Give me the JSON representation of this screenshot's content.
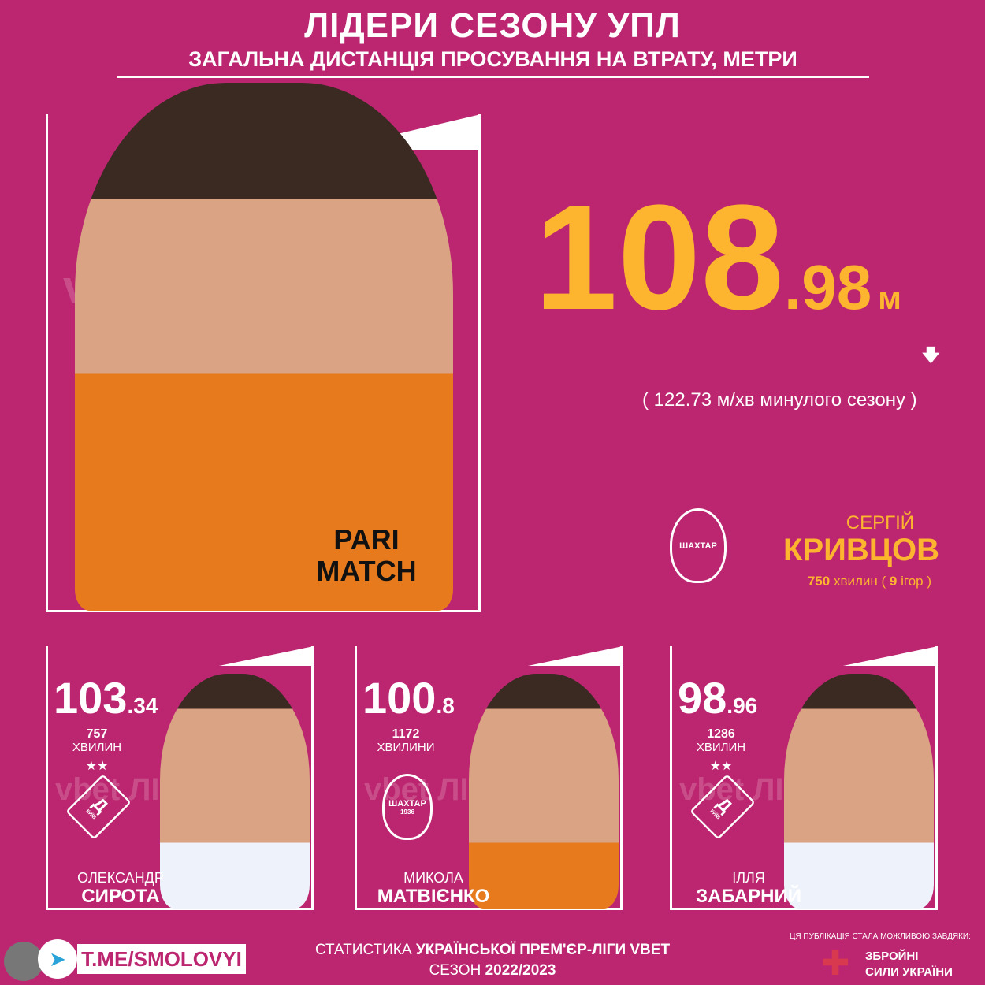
{
  "header": {
    "title": "ЛІДЕРИ СЕЗОНУ УПЛ",
    "subtitle": "ЗАГАЛЬНА ДИСТАНЦІЯ ПРОСУВАННЯ НА ВТРАТУ, МЕТРИ"
  },
  "watermark": "vbet ЛІГА",
  "leader": {
    "value_int": "108",
    "value_dec": ".98",
    "unit": "м",
    "trend": "down",
    "prev": "( 122.73 м/хв минулого сезону )",
    "first_name": "СЕРГІЙ",
    "last_name": "КРИВЦОВ",
    "minutes": "750",
    "minutes_label": "хвилин (",
    "games": "9",
    "games_label": "ігор )",
    "club": "ШАХТАР",
    "sponsor": "PARI MATCH"
  },
  "cards": [
    {
      "value_int": "103",
      "value_dec": ".34",
      "minutes": "757",
      "minutes_label": "ХВИЛИН",
      "first_name": "ОЛЕКСАНДР",
      "last_name": "СИРОТА",
      "club": "Д",
      "club_sub": "КИЇВ",
      "stars": "★★"
    },
    {
      "value_int": "100",
      "value_dec": ".8",
      "minutes": "1172",
      "minutes_label": "ХВИЛИНИ",
      "first_name": "МИКОЛА",
      "last_name": "МАТВІЄНКО",
      "club": "ШАХТАР",
      "club_sub": "1936",
      "stars": ""
    },
    {
      "value_int": "98",
      "value_dec": ".96",
      "minutes": "1286",
      "minutes_label": "ХВИЛИН",
      "first_name": "ІЛЛЯ",
      "last_name": "ЗАБАРНИЙ",
      "club": "Д",
      "club_sub": "КИЇВ",
      "stars": "★★"
    }
  ],
  "footer": {
    "link": "T.ME/SMOLOVYI",
    "stats_line1_a": "СТАТИСТИКА ",
    "stats_line1_b": "УКРАЇНСЬКОЇ ПРЕМ'ЄР-ЛІГИ VBET",
    "stats_line2_a": "СЕЗОН ",
    "stats_line2_b": "2022/2023",
    "thanks": "ЦЯ ПУБЛІКАЦІЯ СТАЛА МОЖЛИВОЮ ЗАВДЯКИ:",
    "army1": "ЗБРОЙНІ",
    "army2": "СИЛИ УКРАЇНИ"
  },
  "colors": {
    "background": "#bc2670",
    "accent": "#fdb42e"
  }
}
